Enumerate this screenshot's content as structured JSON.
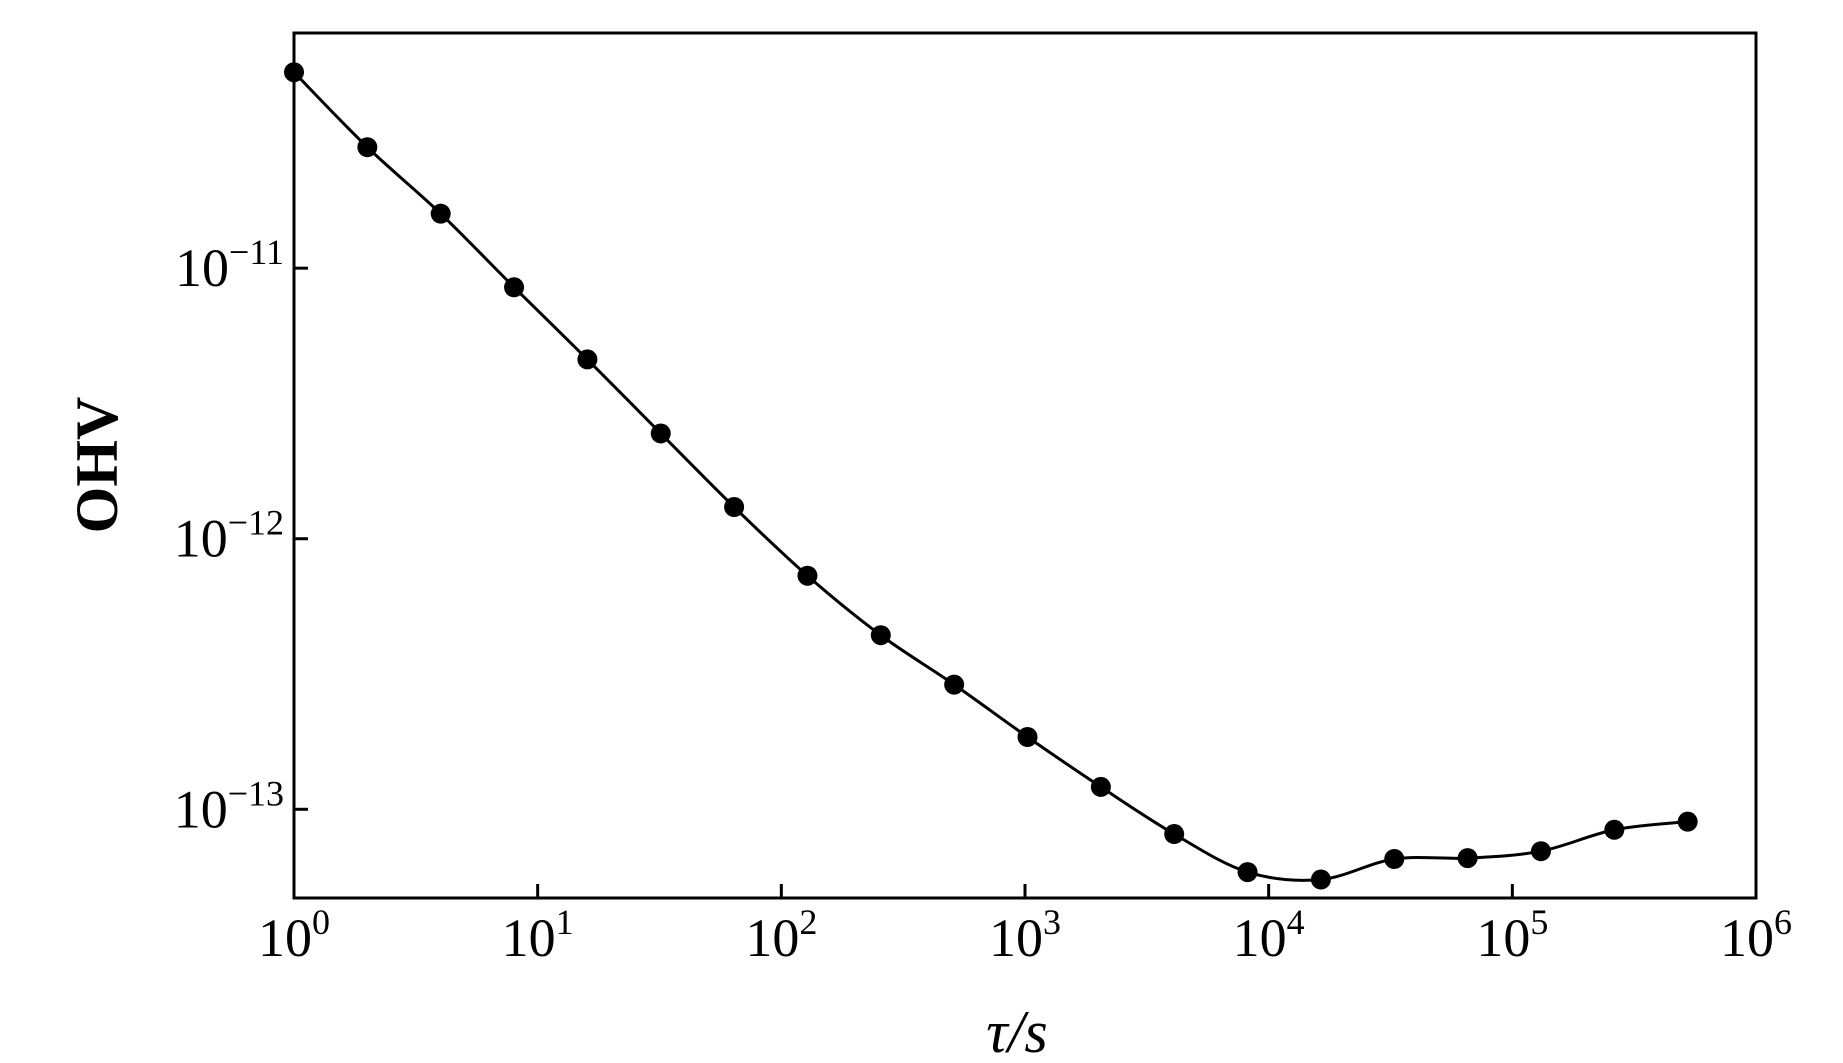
{
  "chart_data": {
    "type": "line",
    "xlabel": "τ/s",
    "ylabel": "OHV",
    "x": [
      1,
      2,
      4,
      8,
      16,
      32,
      64,
      128,
      256,
      512,
      1024,
      2048,
      4096,
      8192,
      16384,
      32768,
      65536,
      131072,
      262144,
      524288
    ],
    "series": [
      {
        "name": "OHV",
        "color": "#000000",
        "values": [
          5.3e-11,
          2.8e-11,
          1.59e-11,
          8.5e-12,
          4.6e-12,
          2.45e-12,
          1.31e-12,
          7.3e-13,
          4.4e-13,
          2.89e-13,
          1.85e-13,
          1.21e-13,
          8.1e-14,
          5.86e-14,
          5.5e-14,
          6.55e-14,
          6.6e-14,
          7e-14,
          8.4e-14,
          9e-14
        ]
      }
    ],
    "xscale": "log",
    "yscale": "log",
    "xlim": [
      1,
      1000000
    ],
    "ylim": [
      4.7e-14,
      7.4e-11
    ],
    "xticks": [
      {
        "value": 1,
        "label": "100"
      },
      {
        "value": 10,
        "label": "101"
      },
      {
        "value": 100,
        "label": "102"
      },
      {
        "value": 1000,
        "label": "103"
      },
      {
        "value": 10000,
        "label": "104"
      },
      {
        "value": 100000,
        "label": "105"
      },
      {
        "value": 1000000,
        "label": "106"
      }
    ],
    "yticks": [
      {
        "value": 1e-11,
        "label": "10−11"
      },
      {
        "value": 1e-12,
        "label": "10−12"
      },
      {
        "value": 1e-13,
        "label": "10−13"
      }
    ],
    "grid": false
  }
}
